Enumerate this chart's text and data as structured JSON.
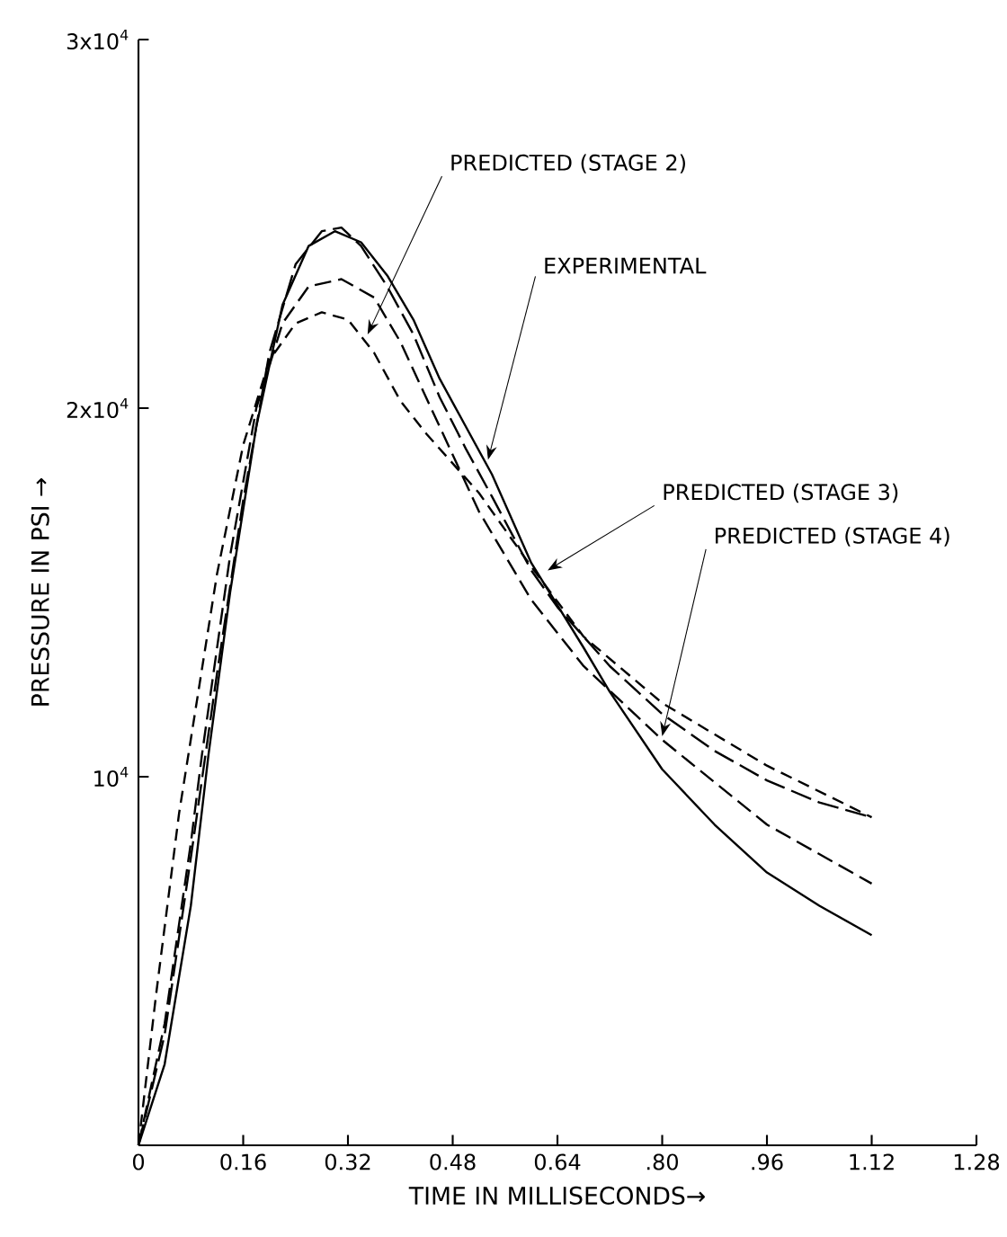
{
  "chart_data": {
    "type": "line",
    "xlabel": "TIME IN MILLISECONDS→",
    "ylabel": "PRESSURE IN PSI →",
    "xlim": [
      0,
      1.28
    ],
    "ylim": [
      0,
      30000
    ],
    "xticks": [
      0,
      0.16,
      0.32,
      0.48,
      0.64,
      {
        "value": 0.8,
        "label": ".80"
      },
      {
        "value": 0.96,
        "label": ".96"
      },
      1.12,
      1.28
    ],
    "yticks": [
      {
        "value": 0,
        "label": null
      },
      {
        "value": 10000,
        "label": "10$^{4}$"
      },
      {
        "value": 20000,
        "label": "2x10$^{4}$"
      },
      {
        "value": 30000,
        "label": "3x10$^{4}$"
      }
    ],
    "grid": false,
    "marker": "none",
    "series": [
      {
        "color": "#000000",
        "line_style": "solid",
        "x": [
          0,
          0.04,
          0.08,
          0.107,
          0.14,
          0.18,
          0.22,
          0.26,
          0.3,
          0.34,
          0.38,
          0.42,
          0.46,
          0.5,
          0.54,
          0.6,
          0.68,
          0.72,
          0.8,
          0.88,
          0.96,
          1.04,
          1.12
        ],
        "values": [
          0,
          2200,
          6500,
          10600,
          15000,
          19500,
          22800,
          24400,
          24800,
          24500,
          23600,
          22400,
          20800,
          19500,
          18200,
          15800,
          13500,
          12300,
          10200,
          8700,
          7400,
          6500,
          5700
        ]
      },
      {
        "color": "#000000",
        "line_style": "dashed",
        "x": [
          0,
          0.027,
          0.062,
          0.12,
          0.16,
          0.2,
          0.24,
          0.28,
          0.32,
          0.36,
          0.4,
          0.44,
          0.52,
          0.6,
          0.68,
          0.8,
          0.96,
          1.12
        ],
        "values": [
          0,
          4100,
          9000,
          15500,
          19000,
          21300,
          22300,
          22600,
          22400,
          21500,
          20200,
          19300,
          17700,
          15700,
          13800,
          12000,
          10300,
          8900
        ]
      },
      {
        "color": "#000000",
        "line_style": "dashed",
        "x": [
          0,
          0.04,
          0.08,
          0.12,
          0.16,
          0.2,
          0.24,
          0.28,
          0.31,
          0.34,
          0.38,
          0.42,
          0.46,
          0.5,
          0.54,
          0.6,
          0.64,
          0.72,
          0.8,
          0.88,
          0.96,
          1.04,
          1.12
        ],
        "values": [
          0,
          3000,
          7800,
          12800,
          17500,
          21500,
          23900,
          24800,
          24900,
          24400,
          23300,
          22000,
          20300,
          18900,
          17600,
          15600,
          14600,
          13000,
          11700,
          10700,
          9900,
          9300,
          8900
        ]
      },
      {
        "color": "#000000",
        "line_style": "dashed",
        "x": [
          0,
          0.04,
          0.08,
          0.097,
          0.14,
          0.18,
          0.22,
          0.26,
          0.31,
          0.36,
          0.4,
          0.46,
          0.52,
          0.6,
          0.68,
          0.8,
          0.96,
          1.12
        ],
        "values": [
          0,
          3300,
          8200,
          10600,
          16000,
          20000,
          22300,
          23300,
          23500,
          23000,
          21800,
          19500,
          17200,
          14800,
          13000,
          11000,
          8700,
          7100
        ]
      }
    ],
    "annotations": [
      {
        "text": "PREDICTED (STAGE 2)",
        "x": 0.35,
        "y": 22000
      },
      {
        "text": "EXPERIMENTAL",
        "x": 0.534,
        "y": 18600
      },
      {
        "text": "PREDICTED (STAGE 3)",
        "x": 0.625,
        "y": 15600
      },
      {
        "text": "PREDICTED (STAGE 4)",
        "x": 0.8,
        "y": 11100
      }
    ]
  }
}
